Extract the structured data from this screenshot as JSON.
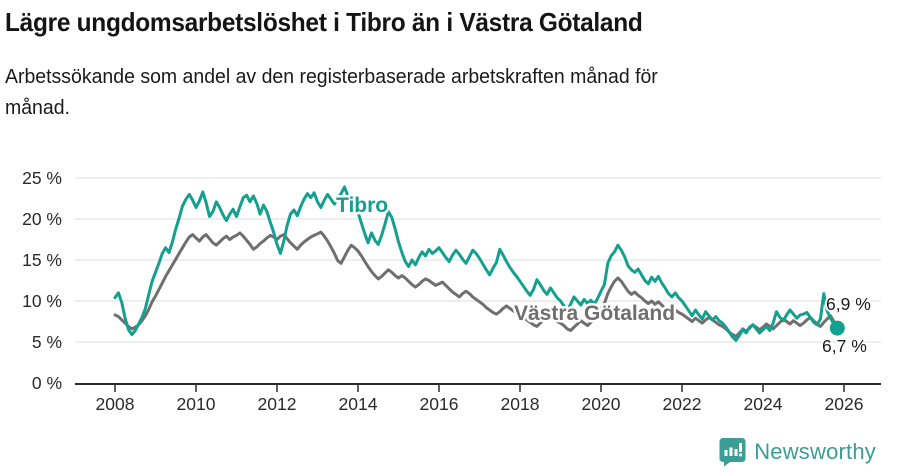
{
  "header": {
    "title": "Lägre ungdomsarbetslöshet i Tibro än i Västra Götaland",
    "subtitle": "Arbetssökande som andel av den registerbaserade arbetskraften månad för månad."
  },
  "footer": {
    "brand": "Newsworthy"
  },
  "colors": {
    "accent_teal": "#14a08f",
    "secondary_gray": "#6f6f6f",
    "brand_teal": "#3e9c96",
    "gridline": "#dcdcdc",
    "axis": "#2b2b2b",
    "text": "#1a1a1a"
  },
  "chart_data": {
    "type": "line",
    "title": "Lägre ungdomsarbetslöshet i Tibro än i Västra Götaland",
    "subtitle": "Arbetssökande som andel av den registerbaserade arbetskraften månad för månad.",
    "unit": "%",
    "frequency": "monthly",
    "x_start": "2008-01",
    "x_end": "2025-11",
    "grid": "horizontal-only",
    "legend_position": "inline-labels",
    "ylim": [
      0,
      25
    ],
    "y_ticks": [
      0,
      5,
      10,
      15,
      20,
      25
    ],
    "y_tick_labels": [
      "0 %",
      "5 %",
      "10 %",
      "15 %",
      "20 %",
      "25 %"
    ],
    "x_ticks": [
      2008,
      2010,
      2012,
      2014,
      2016,
      2018,
      2020,
      2022,
      2024,
      2026
    ],
    "x_tick_labels": [
      "2008",
      "2010",
      "2012",
      "2014",
      "2016",
      "2018",
      "2020",
      "2022",
      "2024",
      "2026"
    ],
    "series": [
      {
        "id": "tibro",
        "name": "Tibro",
        "color": "#14a08f",
        "end_label": "6,7 %",
        "end_value": 6.7,
        "values": [
          10.4,
          11.0,
          9.8,
          7.9,
          6.5,
          5.9,
          6.4,
          7.2,
          8.0,
          9.1,
          10.8,
          12.4,
          13.5,
          14.6,
          15.8,
          16.5,
          15.9,
          17.2,
          18.8,
          20.1,
          21.6,
          22.4,
          23.0,
          22.3,
          21.4,
          22.2,
          23.3,
          22.0,
          20.3,
          20.9,
          22.1,
          21.4,
          20.5,
          19.8,
          20.6,
          21.2,
          20.3,
          21.5,
          22.6,
          22.9,
          22.1,
          22.8,
          21.9,
          20.6,
          21.7,
          20.9,
          19.6,
          18.4,
          16.9,
          15.8,
          17.3,
          19.2,
          20.6,
          21.1,
          20.4,
          21.5,
          22.4,
          23.1,
          22.6,
          23.2,
          22.1,
          21.4,
          22.3,
          23.0,
          22.4,
          21.8,
          22.6,
          23.1,
          23.9,
          22.8,
          21.9,
          21.6,
          20.8,
          19.5,
          18.2,
          17.1,
          18.3,
          17.4,
          16.9,
          18.0,
          19.4,
          20.9,
          20.2,
          18.8,
          17.2,
          15.9,
          14.8,
          14.2,
          15.0,
          14.4,
          15.3,
          16.0,
          15.5,
          16.3,
          15.8,
          16.1,
          16.5,
          15.9,
          15.3,
          14.8,
          15.6,
          16.2,
          15.7,
          15.1,
          14.6,
          15.4,
          16.2,
          15.8,
          15.2,
          14.5,
          13.8,
          13.2,
          14.0,
          14.7,
          16.3,
          15.6,
          14.8,
          14.1,
          13.5,
          13.0,
          12.4,
          11.8,
          11.2,
          10.7,
          11.4,
          12.6,
          12.0,
          11.3,
          10.8,
          11.6,
          11.0,
          10.4,
          10.0,
          9.4,
          8.9,
          9.6,
          10.5,
          10.0,
          9.5,
          10.2,
          9.7,
          10.1,
          9.6,
          10.3,
          11.2,
          12.0,
          14.6,
          15.5,
          16.0,
          16.8,
          16.2,
          15.4,
          14.3,
          13.8,
          13.5,
          13.9,
          13.2,
          12.5,
          12.1,
          12.9,
          12.4,
          13.0,
          12.2,
          11.6,
          10.9,
          10.5,
          11.0,
          10.4,
          10.0,
          9.4,
          8.8,
          8.2,
          8.9,
          8.3,
          7.8,
          8.7,
          8.2,
          7.7,
          8.1,
          7.6,
          7.3,
          6.8,
          6.2,
          5.6,
          5.2,
          5.8,
          6.5,
          6.1,
          6.8,
          7.1,
          6.6,
          6.1,
          6.5,
          6.9,
          6.4,
          7.3,
          8.7,
          8.0,
          7.6,
          8.3,
          8.9,
          8.4,
          7.9,
          8.3,
          8.4,
          8.6,
          8.0,
          7.4,
          7.1,
          7.8,
          10.9,
          8.8,
          7.9,
          7.2,
          6.7
        ]
      },
      {
        "id": "vastra-gotaland",
        "name": "Västra Götaland",
        "color": "#6f6f6f",
        "end_label": "6,9 %",
        "end_value": 6.9,
        "values": [
          8.3,
          8.1,
          7.7,
          7.3,
          6.9,
          6.6,
          6.8,
          7.1,
          7.6,
          8.2,
          9.0,
          9.9,
          10.6,
          11.4,
          12.2,
          13.0,
          13.7,
          14.4,
          15.1,
          15.8,
          16.5,
          17.2,
          17.8,
          18.1,
          17.7,
          17.3,
          17.8,
          18.1,
          17.6,
          17.1,
          16.8,
          17.2,
          17.6,
          17.9,
          17.5,
          17.8,
          18.0,
          18.3,
          17.9,
          17.4,
          16.9,
          16.3,
          16.6,
          17.0,
          17.3,
          17.7,
          18.0,
          17.8,
          17.5,
          17.9,
          18.1,
          17.6,
          17.1,
          16.7,
          16.3,
          16.8,
          17.2,
          17.5,
          17.8,
          18.0,
          18.2,
          18.4,
          17.9,
          17.3,
          16.6,
          15.8,
          14.9,
          14.6,
          15.4,
          16.2,
          16.8,
          16.5,
          16.1,
          15.5,
          14.8,
          14.2,
          13.6,
          13.1,
          12.7,
          13.0,
          13.4,
          13.8,
          13.5,
          13.1,
          12.8,
          13.1,
          12.8,
          12.4,
          12.0,
          11.7,
          12.0,
          12.4,
          12.7,
          12.5,
          12.2,
          11.9,
          12.1,
          12.3,
          11.9,
          11.5,
          11.1,
          10.8,
          10.5,
          10.9,
          11.2,
          10.9,
          10.5,
          10.2,
          9.9,
          9.6,
          9.2,
          8.9,
          8.6,
          8.4,
          8.7,
          9.1,
          9.4,
          9.1,
          8.8,
          8.5,
          8.3,
          8.0,
          7.7,
          7.4,
          7.1,
          6.9,
          7.3,
          7.9,
          8.4,
          8.1,
          7.8,
          7.5,
          7.3,
          7.0,
          6.6,
          6.4,
          6.8,
          7.2,
          7.6,
          7.3,
          7.0,
          7.4,
          7.8,
          8.2,
          9.0,
          9.7,
          10.9,
          11.7,
          12.4,
          12.8,
          12.4,
          11.8,
          11.2,
          10.8,
          11.1,
          10.7,
          10.4,
          10.0,
          9.7,
          10.0,
          9.6,
          9.9,
          9.5,
          9.1,
          8.8,
          9.2,
          8.9,
          8.6,
          8.4,
          8.1,
          7.8,
          7.5,
          7.9,
          7.6,
          7.3,
          7.7,
          8.0,
          7.7,
          7.4,
          7.1,
          6.9,
          6.6,
          6.2,
          5.9,
          5.7,
          6.1,
          6.6,
          6.3,
          6.7,
          7.1,
          6.8,
          6.5,
          6.8,
          7.2,
          6.9,
          6.6,
          7.0,
          7.4,
          7.8,
          7.5,
          7.2,
          7.6,
          7.3,
          7.0,
          7.3,
          7.7,
          8.0,
          7.6,
          7.2,
          6.9,
          7.4,
          7.8,
          8.2,
          7.5,
          6.9
        ]
      }
    ]
  }
}
